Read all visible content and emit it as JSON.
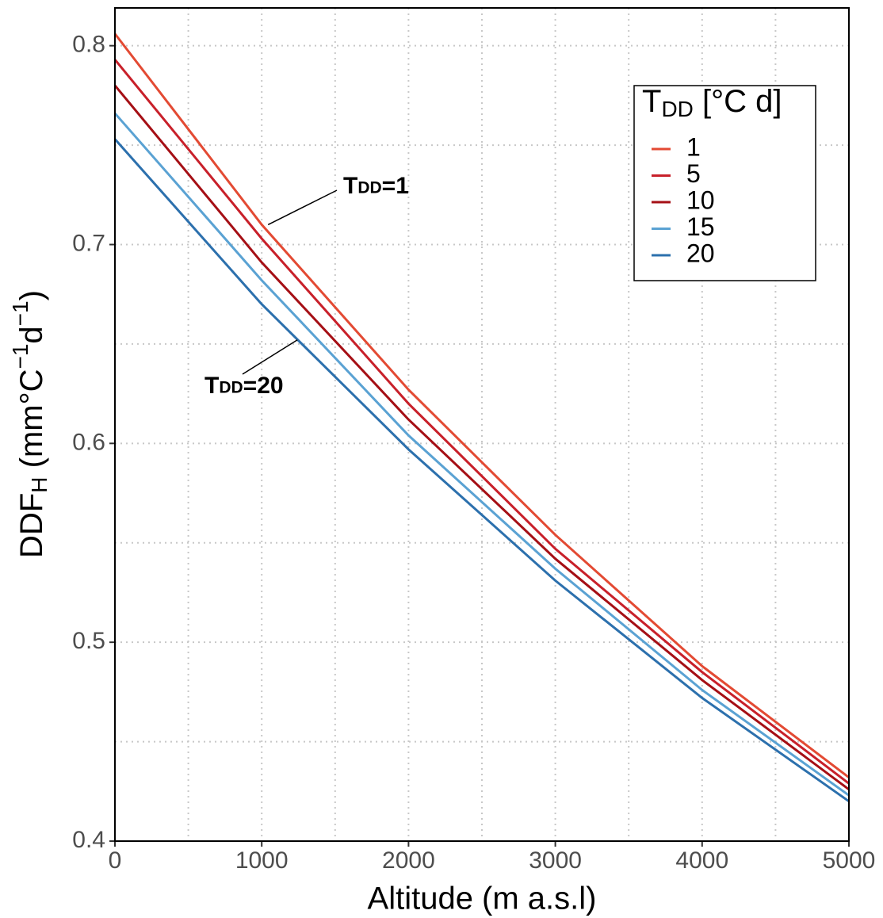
{
  "chart_data": {
    "type": "line",
    "x_label": "Altitude (m a.s.l)",
    "y_label": [
      {
        "text": "DDF"
      },
      {
        "text": "H",
        "shift": "sub"
      },
      {
        "text": " (mm°C"
      },
      {
        "text": "−1",
        "shift": "sup"
      },
      {
        "text": "d"
      },
      {
        "text": "−1",
        "shift": "sup"
      },
      {
        "text": ")"
      }
    ],
    "legend_title": [
      {
        "text": "T"
      },
      {
        "text": "DD",
        "shift": "sub"
      },
      {
        "text": " [°C d]"
      }
    ],
    "legend": "top-right",
    "x": [
      0,
      1000,
      2000,
      3000,
      4000,
      5000
    ],
    "series": [
      {
        "name": "1",
        "color": "#e34a33",
        "values": [
          0.806,
          0.71,
          0.627,
          0.554,
          0.488,
          0.432
        ]
      },
      {
        "name": "5",
        "color": "#c8202a",
        "values": [
          0.793,
          0.703,
          0.62,
          0.547,
          0.485,
          0.429
        ]
      },
      {
        "name": "10",
        "color": "#a50f15",
        "values": [
          0.78,
          0.691,
          0.612,
          0.542,
          0.481,
          0.426
        ]
      },
      {
        "name": "15",
        "color": "#5aa2d3",
        "values": [
          0.766,
          0.682,
          0.604,
          0.537,
          0.476,
          0.423
        ]
      },
      {
        "name": "20",
        "color": "#2c70ad",
        "values": [
          0.753,
          0.67,
          0.597,
          0.531,
          0.472,
          0.42
        ]
      }
    ],
    "annotations": [
      {
        "parts": [
          {
            "text": "T"
          },
          {
            "text": "DD",
            "shift": "small"
          },
          {
            "text": "=1"
          }
        ],
        "series": 0,
        "at": 1
      },
      {
        "parts": [
          {
            "text": "T"
          },
          {
            "text": "DD",
            "shift": "small"
          },
          {
            "text": "=20"
          }
        ],
        "series": 4,
        "at": 1
      }
    ],
    "xlim": [
      0,
      5000
    ],
    "ylim": [
      0.4,
      0.819
    ],
    "xticks": [
      0,
      1000,
      2000,
      3000,
      4000,
      5000
    ],
    "yticks": [
      0.4,
      0.5,
      0.6,
      0.7,
      0.8
    ],
    "x_minor_ticks": [
      500,
      1500,
      2500,
      3500,
      4500
    ],
    "y_minor_ticks": [
      0.45,
      0.55,
      0.65,
      0.75
    ],
    "grid": true
  }
}
